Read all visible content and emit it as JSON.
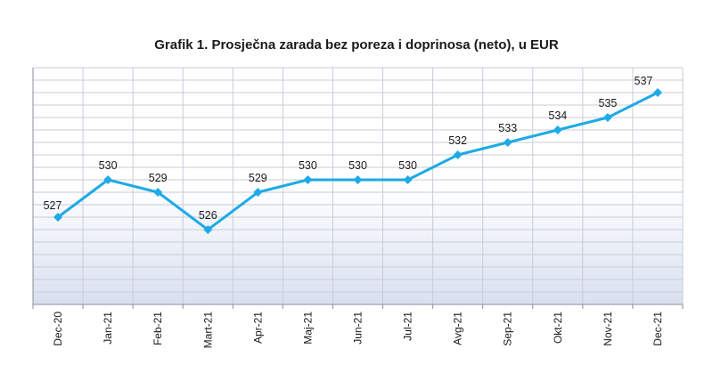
{
  "chart_data": {
    "type": "line",
    "title": "Grafik 1. Prosječna zarada bez poreza i doprinosa (neto), u EUR",
    "xlabel": "",
    "ylabel": "",
    "categories": [
      "Dec-20",
      "Jan-21",
      "Feb-21",
      "Mart-21",
      "Apr-21",
      "Maj-21",
      "Jun-21",
      "Jul-21",
      "Avg-21",
      "Sep-21",
      "Okt-21",
      "Nov-21",
      "Dec-21"
    ],
    "series": [
      {
        "values": [
          527,
          530,
          529,
          526,
          529,
          530,
          530,
          530,
          532,
          533,
          534,
          535,
          537
        ]
      }
    ],
    "data_labels": [
      "527",
      "530",
      "529",
      "526",
      "529",
      "530",
      "530",
      "530",
      "532",
      "533",
      "534",
      "535",
      "537"
    ],
    "ylim": [
      520,
      539
    ],
    "grid": true,
    "legend": "none",
    "colors": {
      "line": "#1eaae6",
      "grid": "#c8ccd6",
      "axis": "#8a8f99",
      "plot_bg_bottom": "#d8e0f0"
    }
  }
}
